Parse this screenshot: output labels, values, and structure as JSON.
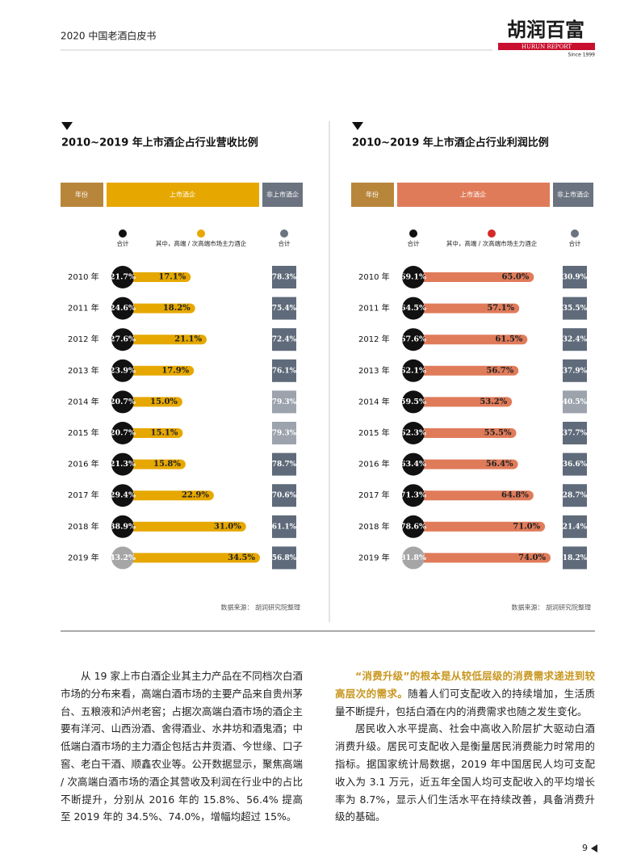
{
  "header": {
    "title": "2020 中国老酒白皮书",
    "logo": "胡润百富",
    "logo_sub": "HURUN REPORT",
    "logo_since": "Since 1999"
  },
  "charts": [
    {
      "title": "2010~2019 年上市酒企占行业营收比例",
      "col_year": "年份",
      "col_listed": "上市酒企",
      "col_non": "非上市酒企",
      "legend": [
        "合计",
        "其中，高端 / 次高端市场主力酒企",
        "合计"
      ],
      "years": [
        "2010 年",
        "2011 年",
        "2012 年",
        "2013 年",
        "2014 年",
        "2015 年",
        "2016 年",
        "2017 年",
        "2018 年",
        "2019 年"
      ],
      "total": [
        21.7,
        24.6,
        27.6,
        23.9,
        20.7,
        20.7,
        21.3,
        29.4,
        38.9,
        43.2
      ],
      "total_labels": [
        "21.7%",
        "24.6%",
        "27.6%",
        "23.9%",
        "20.7%",
        "20.7%",
        "21.3%",
        "29.4%",
        "38.9%",
        "43.2%"
      ],
      "main": [
        17.1,
        18.2,
        21.1,
        17.9,
        15.0,
        15.1,
        15.8,
        22.9,
        31.0,
        34.5
      ],
      "main_labels": [
        "17.1%",
        "18.2%",
        "21.1%",
        "17.9%",
        "15.0%",
        "15.1%",
        "15.8%",
        "22.9%",
        "31.0%",
        "34.5%"
      ],
      "non": [
        78.3,
        75.4,
        72.4,
        76.1,
        79.3,
        79.3,
        78.7,
        70.6,
        61.1,
        56.8
      ],
      "non_labels": [
        "78.3%",
        "75.4%",
        "72.4%",
        "76.1%",
        "79.3%",
        "79.3%",
        "78.7%",
        "70.6%",
        "61.1%",
        "56.8%"
      ],
      "source": "数据来源： 胡润研究院整理"
    },
    {
      "title": "2010~2019 年上市酒企占行业利润比例",
      "col_year": "年份",
      "col_listed": "上市酒企",
      "col_non": "非上市酒企",
      "legend": [
        "合计",
        "其中，高端 / 次高端市场主力酒企",
        "合计"
      ],
      "years": [
        "2010 年",
        "2011 年",
        "2012 年",
        "2013 年",
        "2014 年",
        "2015 年",
        "2016 年",
        "2017 年",
        "2018 年",
        "2019 年"
      ],
      "total": [
        69.1,
        64.5,
        67.6,
        62.1,
        59.5,
        62.3,
        63.4,
        71.3,
        78.6,
        81.8
      ],
      "total_labels": [
        "69.1%",
        "64.5%",
        "67.6%",
        "62.1%",
        "59.5%",
        "62.3%",
        "63.4%",
        "71.3%",
        "78.6%",
        "81.8%"
      ],
      "main": [
        65.0,
        57.1,
        61.5,
        56.7,
        53.2,
        55.5,
        56.4,
        64.8,
        71.0,
        74.0
      ],
      "main_labels": [
        "65.0%",
        "57.1%",
        "61.5%",
        "56.7%",
        "53.2%",
        "55.5%",
        "56.4%",
        "64.8%",
        "71.0%",
        "74.0%"
      ],
      "non": [
        30.9,
        35.5,
        32.4,
        37.9,
        40.5,
        37.7,
        36.6,
        28.7,
        21.4,
        18.2
      ],
      "non_labels": [
        "30.9%",
        "35.5%",
        "32.4%",
        "37.9%",
        "40.5%",
        "37.7%",
        "36.6%",
        "28.7%",
        "21.4%",
        "18.2%"
      ],
      "source": "数据来源： 胡润研究院整理"
    }
  ],
  "body": {
    "left": "从 19 家上市白酒企业其主力产品在不同档次白酒市场的分布来看，高端白酒市场的主要产品来自贵州茅台、五粮液和泸州老窖；占据次高端白酒市场的酒企主要有洋河、山西汾酒、舍得酒业、水井坊和酒鬼酒；中低端白酒市场的主力酒企包括古井贡酒、今世缘、口子窖、老白干酒、顺鑫农业等。公开数据显示，聚焦高端 / 次高端白酒市场的酒企其营收及利润在行业中的占比不断提升，分别从 2016 年的 15.8%、56.4% 提高至 2019 年的 34.5%、74.0%，增幅均超过 15%。",
    "right_highlight": "“消费升级”的根本是从较低层级的消费需求递进到较高层次的需求。",
    "right_rest": "随着人们可支配收入的持续增加，生活质量不断提升，包括白酒在内的消费需求也随之发生变化。",
    "right_p2": "居民收入水平提高、社会中高收入阶层扩大驱动白酒消费升级。居民可支配收入是衡量居民消费能力时常用的指标。据国家统计局数据，2019 年中国居民人均可支配收入为 3.1 万元，近五年全国人均可支配收入的平均增长率为 8.7%，显示人们生活水平在持续改善，具备消费升级的基础。"
  },
  "page_number": "9"
}
